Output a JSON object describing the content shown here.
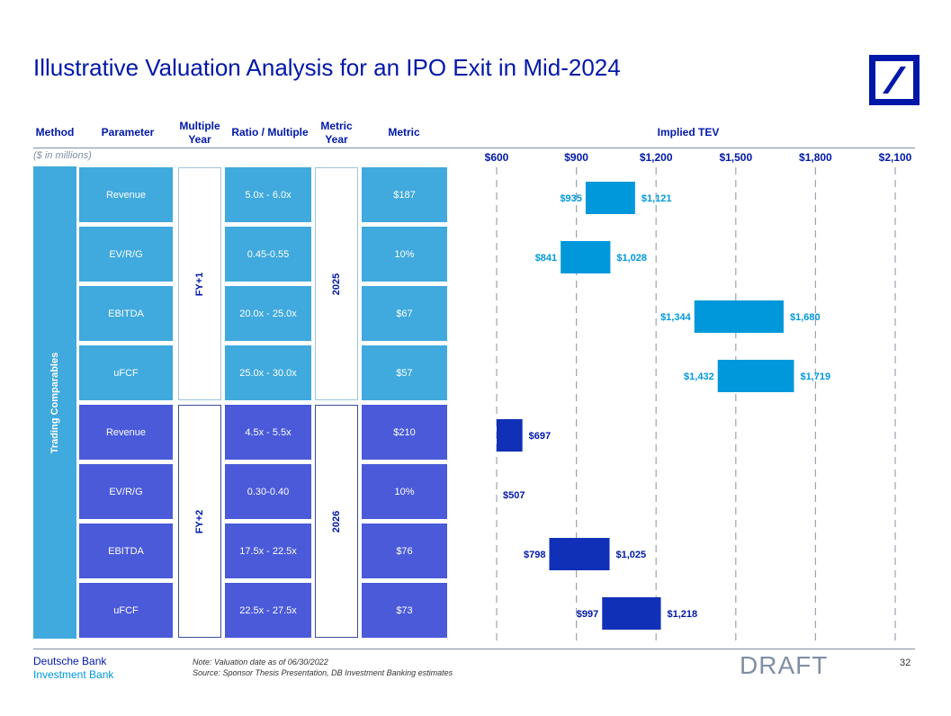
{
  "title": "Illustrative Valuation Analysis for an IPO Exit in Mid-2024",
  "headers": {
    "method": "Method",
    "parameter": "Parameter",
    "multiple_year": "Multiple Year",
    "ratio_multiple": "Ratio / Multiple",
    "metric_year": "Metric Year",
    "metric": "Metric",
    "implied_tev": "Implied TEV"
  },
  "units_note": "($ in millions)",
  "method_label": "Trading Comparables",
  "groups": [
    {
      "multiple_year": "FY+1",
      "metric_year": "2025",
      "rows": [
        {
          "parameter": "Revenue",
          "ratio": "5.0x - 6.0x",
          "metric": "$187"
        },
        {
          "parameter": "EV/R/G",
          "ratio": "0.45-0.55",
          "metric": "10%"
        },
        {
          "parameter": "EBITDA",
          "ratio": "20.0x - 25.0x",
          "metric": "$67"
        },
        {
          "parameter": "uFCF",
          "ratio": "25.0x - 30.0x",
          "metric": "$57"
        }
      ]
    },
    {
      "multiple_year": "FY+2",
      "metric_year": "2026",
      "rows": [
        {
          "parameter": "Revenue",
          "ratio": "4.5x - 5.5x",
          "metric": "$210"
        },
        {
          "parameter": "EV/R/G",
          "ratio": "0.30-0.40",
          "metric": "10%"
        },
        {
          "parameter": "EBITDA",
          "ratio": "17.5x - 22.5x",
          "metric": "$76"
        },
        {
          "parameter": "uFCF",
          "ratio": "22.5x - 27.5x",
          "metric": "$73"
        }
      ]
    }
  ],
  "chart_data": {
    "type": "bar",
    "orientation": "horizontal-floating-range",
    "title": "Implied TEV",
    "xlim": [
      600,
      2100
    ],
    "tick_values": [
      600,
      900,
      1200,
      1500,
      1800,
      2100
    ],
    "tick_labels": [
      "$600",
      "$900",
      "$1,200",
      "$1,500",
      "$1,800",
      "$2,100"
    ],
    "grid": "vertical dashed",
    "series": [
      {
        "colour": "#0098db",
        "ranges": [
          {
            "low": 935,
            "high": 1121,
            "low_label": "$935",
            "high_label": "$1,121"
          },
          {
            "low": 841,
            "high": 1028,
            "low_label": "$841",
            "high_label": "$1,028"
          },
          {
            "low": 1344,
            "high": 1680,
            "low_label": "$1,344",
            "high_label": "$1,680"
          },
          {
            "low": 1432,
            "high": 1719,
            "low_label": "$1,432",
            "high_label": "$1,719"
          }
        ]
      },
      {
        "colour": "#1030b8",
        "ranges": [
          {
            "low": 600,
            "high": 697,
            "low_label": "",
            "high_label": "$697"
          },
          {
            "low": 507,
            "high": 507,
            "low_label": "",
            "high_label": "$507"
          },
          {
            "low": 798,
            "high": 1025,
            "low_label": "$798",
            "high_label": "$1,025"
          },
          {
            "low": 997,
            "high": 1218,
            "low_label": "$997",
            "high_label": "$1,218"
          }
        ]
      }
    ]
  },
  "colors": {
    "brand_blue": "#0018a8",
    "light_blue": "#40a9dd",
    "dark_blue": "#4a5ad9",
    "label_light": "#0098db",
    "label_dark": "#0018a8"
  },
  "footer": {
    "brand_line1": "Deutsche Bank",
    "brand_line2": "Investment Bank",
    "note_line1": "Note: Valuation date as of 06/30/2022",
    "note_line2": "Source: Sponsor Thesis Presentation, DB Investment Banking estimates",
    "draft": "DRAFT",
    "page_number": "32"
  }
}
